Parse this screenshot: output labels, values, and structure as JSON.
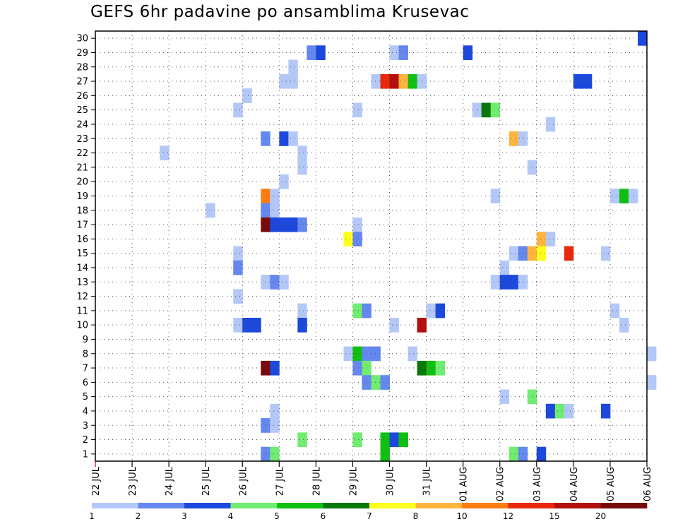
{
  "chart_data": {
    "type": "heatmap",
    "title": "GEFS 6hr padavine po ansamblima Krusevac",
    "xlabel": "",
    "ylabel": "",
    "x_ticks": [
      "22 JUL",
      "23 JUL",
      "24 JUL",
      "25 JUL",
      "26 JUL",
      "27 JUL",
      "28 JUL",
      "29 JUL",
      "30 JUL",
      "31 JUL",
      "01 AUG",
      "02 AUG",
      "03 AUG",
      "04 AUG",
      "05 AUG",
      "06 AUG"
    ],
    "y_ticks": [
      "1",
      "2",
      "3",
      "4",
      "5",
      "6",
      "7",
      "8",
      "9",
      "10",
      "11",
      "12",
      "13",
      "14",
      "15",
      "16",
      "17",
      "18",
      "19",
      "20",
      "21",
      "22",
      "23",
      "24",
      "25",
      "26",
      "27",
      "28",
      "29",
      "30"
    ],
    "ylim": [
      0.5,
      30.5
    ],
    "grid": true,
    "legend": {
      "position": "bottom",
      "labels": [
        "1",
        "2",
        "3",
        "4",
        "5",
        "6",
        "7",
        "8",
        "10",
        "12",
        "15",
        "20"
      ],
      "colors": [
        "#b4c8f8",
        "#6488f0",
        "#1c48dc",
        "#70ec70",
        "#10c010",
        "#087808",
        "#ffff1e",
        "#ffb43c",
        "#ff7d0e",
        "#e8280c",
        "#b40e0e",
        "#780a0a"
      ]
    },
    "colors": {
      "c1": "#b4c8f8",
      "c2": "#6488f0",
      "c3": "#1c48dc",
      "c4": "#70ec70",
      "c5": "#10c010",
      "c6": "#087808",
      "c7": "#ffff1e",
      "c8": "#ffb43c",
      "c10": "#ff7d0e",
      "c12": "#e8280c",
      "c15": "#b40e0e",
      "c20": "#780a0a"
    },
    "x_unit": "6-hour step after 22 JUL 00Z",
    "cells": [
      [
        59,
        30,
        3
      ],
      [
        23,
        29,
        2
      ],
      [
        24,
        29,
        3
      ],
      [
        32,
        29,
        1
      ],
      [
        33,
        29,
        2
      ],
      [
        40,
        29,
        3
      ],
      [
        21,
        28,
        1
      ],
      [
        20,
        27,
        1
      ],
      [
        21,
        27,
        1
      ],
      [
        30,
        27,
        1
      ],
      [
        31,
        27,
        12
      ],
      [
        32,
        27,
        15
      ],
      [
        33,
        27,
        8
      ],
      [
        34,
        27,
        5
      ],
      [
        35,
        27,
        1
      ],
      [
        52,
        27,
        3
      ],
      [
        53,
        27,
        3
      ],
      [
        16,
        26,
        1
      ],
      [
        15,
        25,
        1
      ],
      [
        28,
        25,
        1
      ],
      [
        41,
        25,
        1
      ],
      [
        42,
        25,
        6
      ],
      [
        43,
        25,
        4
      ],
      [
        49,
        24,
        1
      ],
      [
        18,
        23,
        2
      ],
      [
        20,
        23,
        3
      ],
      [
        21,
        23,
        1
      ],
      [
        45,
        23,
        8
      ],
      [
        46,
        23,
        1
      ],
      [
        7,
        22,
        1
      ],
      [
        22,
        22,
        1
      ],
      [
        22,
        21,
        1
      ],
      [
        47,
        21,
        1
      ],
      [
        20,
        20,
        1
      ],
      [
        18,
        19,
        10
      ],
      [
        19,
        19,
        1
      ],
      [
        43,
        19,
        1
      ],
      [
        56,
        19,
        1
      ],
      [
        57,
        19,
        5
      ],
      [
        58,
        19,
        1
      ],
      [
        12,
        18,
        1
      ],
      [
        18,
        18,
        2
      ],
      [
        19,
        18,
        1
      ],
      [
        18,
        17,
        20
      ],
      [
        19,
        17,
        3
      ],
      [
        20,
        17,
        3
      ],
      [
        21,
        17,
        3
      ],
      [
        22,
        17,
        2
      ],
      [
        28,
        17,
        1
      ],
      [
        27,
        16,
        7
      ],
      [
        28,
        16,
        2
      ],
      [
        48,
        16,
        8
      ],
      [
        49,
        16,
        1
      ],
      [
        15,
        15,
        1
      ],
      [
        45,
        15,
        1
      ],
      [
        46,
        15,
        2
      ],
      [
        47,
        15,
        8
      ],
      [
        48,
        15,
        7
      ],
      [
        51,
        15,
        12
      ],
      [
        55,
        15,
        1
      ],
      [
        15,
        14,
        2
      ],
      [
        44,
        14,
        1
      ],
      [
        18,
        13,
        1
      ],
      [
        19,
        13,
        2
      ],
      [
        20,
        13,
        1
      ],
      [
        43,
        13,
        1
      ],
      [
        44,
        13,
        3
      ],
      [
        45,
        13,
        3
      ],
      [
        46,
        13,
        1
      ],
      [
        15,
        12,
        1
      ],
      [
        22,
        11,
        1
      ],
      [
        28,
        11,
        4
      ],
      [
        29,
        11,
        2
      ],
      [
        36,
        11,
        1
      ],
      [
        37,
        11,
        3
      ],
      [
        56,
        11,
        1
      ],
      [
        15,
        10,
        1
      ],
      [
        16,
        10,
        3
      ],
      [
        17,
        10,
        3
      ],
      [
        22,
        10,
        3
      ],
      [
        32,
        10,
        1
      ],
      [
        35,
        10,
        15
      ],
      [
        57,
        10,
        1
      ],
      [
        27,
        8,
        1
      ],
      [
        28,
        8,
        5
      ],
      [
        29,
        8,
        2
      ],
      [
        30,
        8,
        2
      ],
      [
        34,
        8,
        1
      ],
      [
        60,
        8,
        1
      ],
      [
        18,
        7,
        20
      ],
      [
        19,
        7,
        3
      ],
      [
        28,
        7,
        2
      ],
      [
        29,
        7,
        4
      ],
      [
        35,
        7,
        6
      ],
      [
        36,
        7,
        5
      ],
      [
        37,
        7,
        4
      ],
      [
        29,
        6,
        2
      ],
      [
        30,
        6,
        4
      ],
      [
        31,
        6,
        2
      ],
      [
        60,
        6,
        1
      ],
      [
        44,
        5,
        1
      ],
      [
        47,
        5,
        4
      ],
      [
        19,
        4,
        1
      ],
      [
        49,
        4,
        3
      ],
      [
        50,
        4,
        4
      ],
      [
        51,
        4,
        1
      ],
      [
        55,
        4,
        3
      ],
      [
        18,
        3,
        2
      ],
      [
        19,
        3,
        1
      ],
      [
        22,
        2,
        4
      ],
      [
        28,
        2,
        4
      ],
      [
        31,
        2,
        5
      ],
      [
        32,
        2,
        3
      ],
      [
        33,
        2,
        5
      ],
      [
        18,
        1,
        2
      ],
      [
        19,
        1,
        4
      ],
      [
        31,
        1,
        5
      ],
      [
        45,
        1,
        4
      ],
      [
        46,
        1,
        2
      ],
      [
        48,
        1,
        3
      ]
    ]
  }
}
